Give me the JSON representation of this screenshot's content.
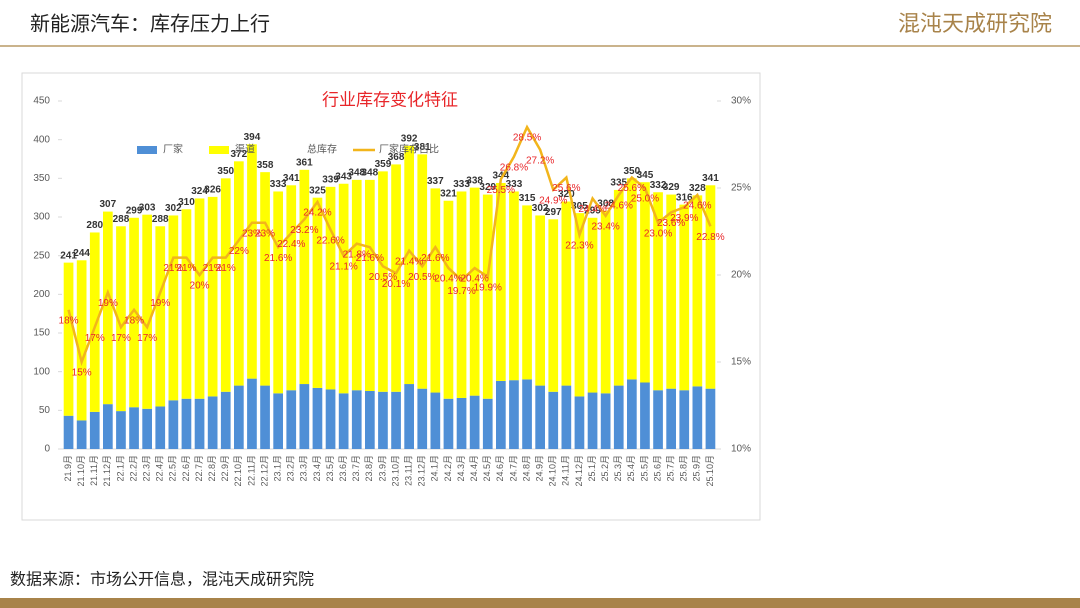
{
  "header": {
    "title": "新能源汽车：库存压力上行",
    "logo": "混沌天成研究院"
  },
  "footer": {
    "source": "数据来源：市场公开信息，混沌天成研究院"
  },
  "chart_data": {
    "type": "bar",
    "title": "行业库存变化特征",
    "categories": [
      "21.9月",
      "21.10月",
      "21.11月",
      "21.12月",
      "22.1月",
      "22.2月",
      "22.3月",
      "22.4月",
      "22.5月",
      "22.6月",
      "22.7月",
      "22.8月",
      "22.9月",
      "22.10月",
      "22.11月",
      "22.12月",
      "23.1月",
      "23.2月",
      "23.3月",
      "23.4月",
      "23.5月",
      "23.6月",
      "23.7月",
      "23.8月",
      "23.9月",
      "23.10月",
      "23.11月",
      "23.12月",
      "24.1月",
      "24.2月",
      "24.3月",
      "24.4月",
      "24.5月",
      "24.6月",
      "24.7月",
      "24.8月",
      "24.9月",
      "24.10月",
      "24.11月",
      "24.12月",
      "25.1月",
      "25.2月",
      "25.3月",
      "25.4月",
      "25.5月",
      "25.6月",
      "25.7月",
      "25.8月",
      "25.9月",
      "25.10月"
    ],
    "series": [
      {
        "name": "厂家",
        "color": "#4f8fd6",
        "role": "stack",
        "values": [
          43,
          37,
          48,
          58,
          49,
          54,
          52,
          55,
          63,
          65,
          65,
          68,
          74,
          82,
          91,
          82,
          72,
          76,
          84,
          79,
          77,
          72,
          76,
          75,
          74,
          74,
          84,
          78,
          73,
          65,
          66,
          69,
          65,
          88,
          89,
          90,
          82,
          74,
          82,
          68,
          73,
          72,
          82,
          90,
          86,
          76,
          78,
          76,
          81,
          78
        ]
      },
      {
        "name": "渠道",
        "color": "#ffff00",
        "role": "stack",
        "values": [
          198,
          207,
          232,
          249,
          239,
          245,
          251,
          233,
          239,
          245,
          259,
          258,
          276,
          290,
          303,
          276,
          261,
          265,
          277,
          246,
          262,
          271,
          272,
          273,
          285,
          294,
          308,
          303,
          264,
          256,
          267,
          269,
          264,
          256,
          244,
          225,
          220,
          223,
          238,
          237,
          226,
          236,
          253,
          260,
          259,
          256,
          251,
          240,
          247,
          263
        ]
      },
      {
        "name": "总库存",
        "color": "#333333",
        "role": "label",
        "values": [
          241,
          244,
          280,
          307,
          288,
          299,
          303,
          288,
          302,
          310,
          324,
          326,
          350,
          372,
          394,
          358,
          333,
          341,
          361,
          325,
          339,
          343,
          348,
          348,
          359,
          368,
          392,
          381,
          337,
          321,
          333,
          338,
          329,
          344,
          333,
          315,
          302,
          297,
          320,
          305,
          299,
          308,
          335,
          350,
          345,
          332,
          329,
          316,
          328,
          341
        ]
      },
      {
        "name": "厂家库存占比",
        "color": "#f2b51b",
        "role": "line",
        "axis": "y2",
        "label_color": "#e8262a",
        "values": [
          18,
          15,
          17,
          19,
          17,
          18,
          17,
          19,
          21,
          21,
          20,
          21,
          21,
          22,
          23,
          23,
          21.6,
          22.4,
          23.2,
          24.2,
          22.6,
          21.1,
          21.8,
          21.6,
          20.5,
          20.1,
          21.4,
          20.5,
          21.6,
          20.4,
          19.7,
          20.4,
          19.9,
          25.5,
          26.8,
          28.5,
          27.2,
          24.9,
          25.6,
          22.3,
          24.4,
          23.4,
          24.6,
          25.6,
          25.0,
          23.0,
          23.6,
          23.9,
          24.6,
          22.8
        ],
        "value_labels": [
          "18%",
          "15%",
          "17%",
          "19%",
          "17%",
          "18%",
          "17%",
          "19%",
          "21%",
          "21%",
          "20%",
          "21%",
          "21%",
          "22%",
          "23%",
          "23%",
          "21.6%",
          "22.4%",
          "23.2%",
          "24.2%",
          "22.6%",
          "21.1%",
          "21.8%",
          "21.6%",
          "20.5%",
          "20.1%",
          "21.4%",
          "20.5%",
          "21.6%",
          "20.4%",
          "19.7%",
          "20.4%",
          "19.9%",
          "25.5%",
          "26.8%",
          "28.5%",
          "27.2%",
          "24.9%",
          "25.6%",
          "22.3%",
          "24.4%",
          "23.4%",
          "24.6%",
          "25.6%",
          "25.0%",
          "23.0%",
          "23.6%",
          "23.9%",
          "24.6%",
          "22.8%"
        ]
      }
    ],
    "ylim": [
      0,
      450
    ],
    "yticks": [
      0,
      50,
      100,
      150,
      200,
      250,
      300,
      350,
      400,
      450
    ],
    "y2lim": [
      10,
      30
    ],
    "y2ticks": [
      {
        "value": 10,
        "label": "10%"
      },
      {
        "value": 15,
        "label": "15%"
      },
      {
        "value": 20,
        "label": "20%"
      },
      {
        "value": 25,
        "label": "25%"
      },
      {
        "value": 30,
        "label": "30%"
      }
    ],
    "grid": false,
    "legend": "top"
  }
}
